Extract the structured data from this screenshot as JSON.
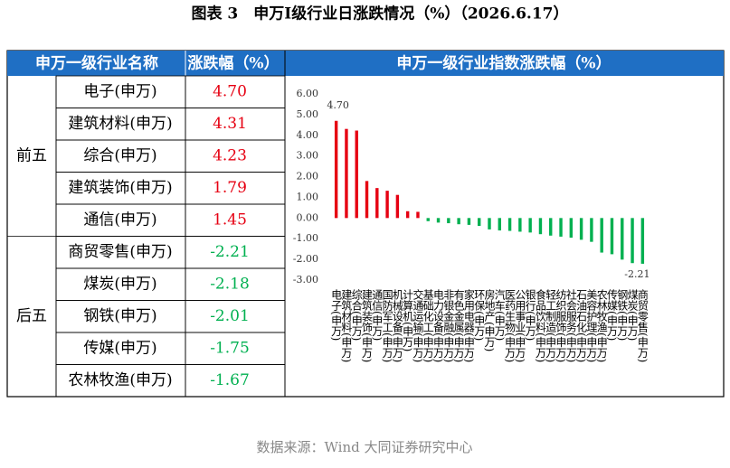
{
  "title": "图表 3　申万Ⅰ级行业日涨跌情况（%）（2026.6.17）",
  "table": {
    "headers": [
      "申万一级行业名称",
      "涨跌幅（%）"
    ],
    "groups": [
      {
        "label": "前五",
        "rows": [
          [
            "电子(申万)",
            "4.70"
          ],
          [
            "建筑材料(申万)",
            "4.31"
          ],
          [
            "综合(申万)",
            "4.23"
          ],
          [
            "建筑装饰(申万)",
            "1.79"
          ],
          [
            "通信(申万)",
            "1.45"
          ]
        ]
      },
      {
        "label": "后五",
        "rows": [
          [
            "商贸零售(申万)",
            "-2.21"
          ],
          [
            "煤炭(申万)",
            "-2.18"
          ],
          [
            "钢铁(申万)",
            "-2.01"
          ],
          [
            "传媒(申万)",
            "-1.75"
          ],
          [
            "农林牧渔(申万)",
            "-1.67"
          ]
        ]
      }
    ]
  },
  "chart_data": {
    "type": "bar",
    "title": "申万一级行业指数涨跌幅（%）",
    "categories": [
      "电子(申万)",
      "建筑材料(申万)",
      "综合(申万)",
      "建筑装饰(申万)",
      "通信(申万)",
      "国防军工(申万)",
      "机械设备(申万)",
      "计算机(申万)",
      "交通运输(申万)",
      "基础化工(申万)",
      "电力设备(申万)",
      "非银金融(申万)",
      "有色金属(申万)",
      "家用电器(申万)",
      "环保(申万)",
      "房地产(申万)",
      "汽车(申万)",
      "医药生物(申万)",
      "公用事业(申万)",
      "银行(申万)",
      "食品饮料(申万)",
      "轻工制造(申万)",
      "纺织服饰(申万)",
      "社会服务(申万)",
      "石油石化(申万)",
      "美容护理(申万)",
      "农林牧渔(申万)",
      "传媒(申万)",
      "钢铁(申万)",
      "煤炭(申万)",
      "商贸零售(申万)"
    ],
    "values": [
      4.7,
      4.31,
      4.23,
      1.79,
      1.45,
      1.32,
      1.12,
      0.33,
      0.3,
      -0.15,
      -0.22,
      -0.25,
      -0.3,
      -0.33,
      -0.38,
      -0.55,
      -0.6,
      -0.62,
      -0.66,
      -0.7,
      -0.78,
      -0.85,
      -0.9,
      -0.95,
      -1.05,
      -1.15,
      -1.67,
      -1.75,
      -2.01,
      -2.18,
      -2.21
    ],
    "value_labels": [
      "4.70",
      null,
      null,
      null,
      null,
      null,
      null,
      null,
      null,
      null,
      null,
      null,
      null,
      null,
      null,
      null,
      null,
      null,
      null,
      null,
      null,
      null,
      null,
      null,
      null,
      null,
      null,
      null,
      null,
      null,
      "-2.21"
    ],
    "colors": {
      "positive": "#e60012",
      "negative": "#00b050"
    },
    "ylim": [
      -3,
      6
    ],
    "yticks": [
      {
        "value": 6,
        "label": "6.00"
      },
      {
        "value": 5,
        "label": "5.00"
      },
      {
        "value": 4,
        "label": "4.00"
      },
      {
        "value": 3,
        "label": "3.00"
      },
      {
        "value": 2,
        "label": "2.00"
      },
      {
        "value": 1,
        "label": "1.00"
      },
      {
        "value": 0,
        "label": "0.00"
      },
      {
        "value": -1,
        "label": "-1.00"
      },
      {
        "value": -2,
        "label": "-2.00"
      },
      {
        "value": -3,
        "label": "-3.00"
      }
    ],
    "grid": false
  },
  "source": "数据来源：Wind 大同证券研究中心"
}
